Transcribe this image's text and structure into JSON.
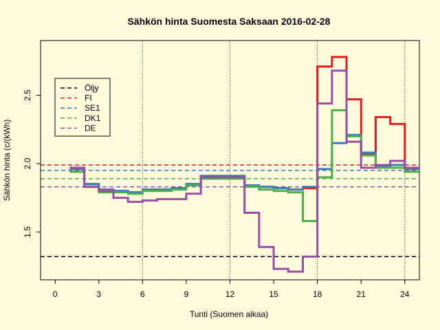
{
  "chart_data": {
    "type": "line",
    "title": "Sähkön hinta Suomesta Saksaan 2016-02-28",
    "xlabel": "Tunti (Suomen aikaa)",
    "ylabel": "Sähkön hinta (c/(kWh)",
    "xlim": [
      -1,
      25
    ],
    "ylim": [
      1.15,
      2.9
    ],
    "x_ticks": [
      0,
      3,
      6,
      9,
      12,
      15,
      18,
      21,
      24
    ],
    "y_ticks": [
      1.5,
      2.0,
      2.5
    ],
    "y_tick_labels": [
      "1.5",
      "2.0",
      "2.5"
    ],
    "vertical_dotted_lines": [
      6,
      12,
      18,
      24
    ],
    "legend_position": "top-left",
    "hours": [
      1,
      2,
      3,
      4,
      5,
      6,
      7,
      8,
      9,
      10,
      11,
      12,
      13,
      14,
      15,
      16,
      17,
      18,
      19,
      20,
      21,
      22,
      23,
      24
    ],
    "horizontal_lines": [
      {
        "name": "Öljy",
        "value": 1.32,
        "color": "#000000"
      },
      {
        "name": "FI",
        "value": 1.99,
        "color": "#e41a1c"
      },
      {
        "name": "SE1",
        "value": 1.95,
        "color": "#377eb8"
      },
      {
        "name": "DK1",
        "value": 1.89,
        "color": "#4daf4a"
      },
      {
        "name": "DE",
        "value": 1.83,
        "color": "#984ea3"
      }
    ],
    "series": [
      {
        "name": "FI",
        "color": "#e41a1c",
        "values": [
          1.96,
          1.85,
          1.81,
          1.8,
          1.79,
          1.81,
          1.81,
          1.82,
          1.85,
          1.91,
          1.91,
          1.91,
          1.84,
          1.83,
          1.82,
          1.81,
          1.82,
          2.71,
          2.78,
          2.47,
          2.07,
          2.34,
          2.29,
          1.96
        ]
      },
      {
        "name": "SE1",
        "color": "#377eb8",
        "values": [
          1.96,
          1.85,
          1.81,
          1.8,
          1.79,
          1.81,
          1.81,
          1.82,
          1.85,
          1.91,
          1.91,
          1.91,
          1.84,
          1.83,
          1.82,
          1.81,
          1.83,
          1.96,
          2.15,
          2.21,
          2.08,
          1.98,
          1.99,
          1.96
        ]
      },
      {
        "name": "DK1",
        "color": "#4daf4a",
        "values": [
          1.94,
          1.83,
          1.79,
          1.79,
          1.78,
          1.8,
          1.8,
          1.81,
          1.84,
          1.89,
          1.89,
          1.89,
          1.83,
          1.81,
          1.8,
          1.79,
          1.58,
          1.9,
          2.39,
          2.2,
          2.06,
          1.97,
          1.97,
          1.94
        ]
      },
      {
        "name": "DE",
        "color": "#984ea3",
        "values": [
          1.97,
          1.83,
          1.8,
          1.75,
          1.72,
          1.73,
          1.74,
          1.74,
          1.78,
          1.9,
          1.9,
          1.9,
          1.64,
          1.39,
          1.23,
          1.21,
          1.32,
          2.44,
          2.68,
          2.16,
          1.97,
          1.99,
          2.02,
          1.97
        ]
      }
    ]
  }
}
